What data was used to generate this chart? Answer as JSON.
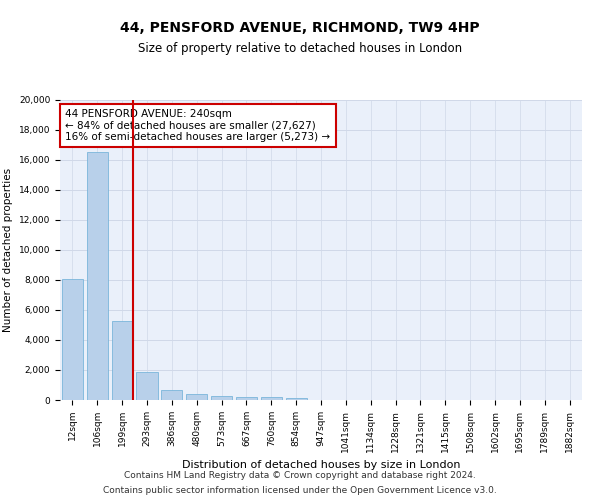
{
  "title": "44, PENSFORD AVENUE, RICHMOND, TW9 4HP",
  "subtitle": "Size of property relative to detached houses in London",
  "xlabel": "Distribution of detached houses by size in London",
  "ylabel": "Number of detached properties",
  "categories": [
    "12sqm",
    "106sqm",
    "199sqm",
    "293sqm",
    "386sqm",
    "480sqm",
    "573sqm",
    "667sqm",
    "760sqm",
    "854sqm",
    "947sqm",
    "1041sqm",
    "1134sqm",
    "1228sqm",
    "1321sqm",
    "1415sqm",
    "1508sqm",
    "1602sqm",
    "1695sqm",
    "1789sqm",
    "1882sqm"
  ],
  "values": [
    8100,
    16500,
    5300,
    1850,
    650,
    380,
    280,
    220,
    190,
    130,
    0,
    0,
    0,
    0,
    0,
    0,
    0,
    0,
    0,
    0,
    0
  ],
  "bar_color": "#b8d0ea",
  "bar_edgecolor": "#6aaed6",
  "annotation_text": "44 PENSFORD AVENUE: 240sqm\n← 84% of detached houses are smaller (27,627)\n16% of semi-detached houses are larger (5,273) →",
  "annotation_box_color": "#ffffff",
  "annotation_box_edgecolor": "#cc0000",
  "vline_color": "#cc0000",
  "vline_x_index": 2.42,
  "ylim": [
    0,
    20000
  ],
  "yticks": [
    0,
    2000,
    4000,
    6000,
    8000,
    10000,
    12000,
    14000,
    16000,
    18000,
    20000
  ],
  "grid_color": "#d0d8e8",
  "background_color": "#eaf0fa",
  "footer_line1": "Contains HM Land Registry data © Crown copyright and database right 2024.",
  "footer_line2": "Contains public sector information licensed under the Open Government Licence v3.0.",
  "title_fontsize": 10,
  "subtitle_fontsize": 8.5,
  "xlabel_fontsize": 8,
  "ylabel_fontsize": 7.5,
  "tick_fontsize": 6.5,
  "annotation_fontsize": 7.5,
  "footer_fontsize": 6.5
}
